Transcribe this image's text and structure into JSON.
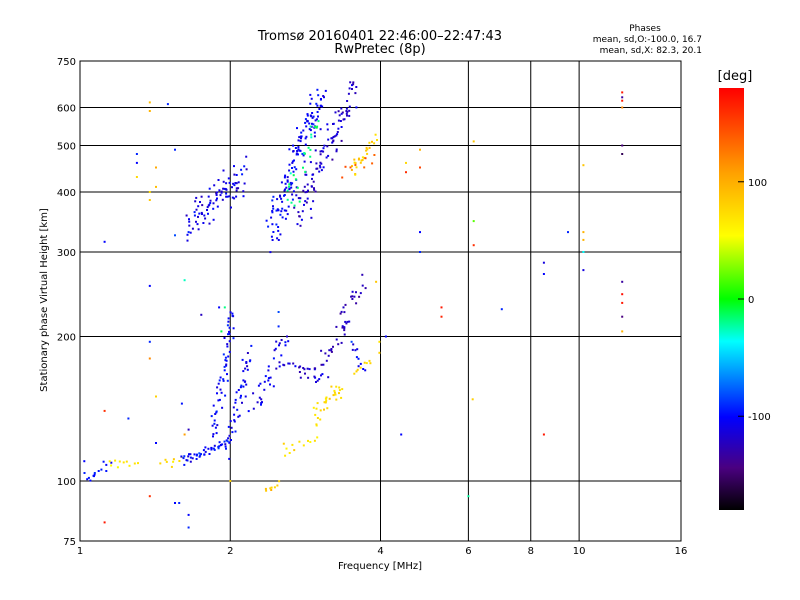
{
  "chart_data": {
    "type": "scatter",
    "title": "Tromsø 20160401 22:46:00–22:47:43",
    "subtitle": "RwPretec (8p)",
    "phases_block": {
      "heading": "Phases",
      "line1": "mean, sd,O:-100.0, 16.7",
      "line2": "mean, sd,X:  82.3, 20.1"
    },
    "xlabel": "Frequency [MHz]",
    "ylabel": "Stationary phase Virtual Height [km]",
    "x_scale": "log",
    "y_scale": "log",
    "xlim": [
      1,
      16
    ],
    "ylim": [
      75,
      750
    ],
    "x_ticks": [
      1,
      2,
      4,
      6,
      8,
      10,
      16
    ],
    "y_ticks": [
      75,
      100,
      200,
      300,
      400,
      500,
      600,
      750
    ],
    "grid": true,
    "colorbar": {
      "label": "[deg]",
      "range": [
        -180,
        180
      ],
      "ticks": [
        100,
        0,
        -100
      ]
    },
    "series": [
      {
        "segments": [
          {
            "f0": 1.02,
            "f1": 1.14,
            "h0": 100,
            "h1": 108,
            "n": 14,
            "phase": -105,
            "sh": 4,
            "sf": 0.03
          },
          {
            "f0": 1.14,
            "f1": 1.3,
            "h0": 108,
            "h1": 110,
            "n": 10,
            "phase": 70,
            "sh": 3,
            "sf": 0.03
          },
          {
            "f0": 1.45,
            "f1": 1.6,
            "h0": 109,
            "h1": 112,
            "n": 8,
            "phase": 75,
            "sh": 3,
            "sf": 0.03
          },
          {
            "f0": 1.6,
            "f1": 1.98,
            "h0": 110,
            "h1": 120,
            "n": 45,
            "phase": -108,
            "sh": 2,
            "sf": 0.02
          },
          {
            "f0": 1.86,
            "f1": 2.03,
            "h0": 125,
            "h1": 225,
            "n": 55,
            "phase": -110,
            "sh": 6,
            "sf": 0.05
          },
          {
            "f0": 1.98,
            "f1": 2.2,
            "h0": 118,
            "h1": 185,
            "n": 45,
            "phase": -115,
            "sh": 8,
            "sf": 0.05
          },
          {
            "f0": 2.25,
            "f1": 2.6,
            "h0": 140,
            "h1": 200,
            "n": 35,
            "phase": -118,
            "sh": 8,
            "sf": 0.1
          },
          {
            "f0": 2.6,
            "f1": 3.1,
            "h0": 175,
            "h1": 162,
            "n": 25,
            "phase": -125,
            "sh": 5,
            "sf": 0.1
          },
          {
            "f0": 3.0,
            "f1": 3.45,
            "h0": 165,
            "h1": 218,
            "n": 25,
            "phase": -130,
            "sh": 8,
            "sf": 0.05
          },
          {
            "f0": 3.3,
            "f1": 3.7,
            "h0": 210,
            "h1": 255,
            "n": 20,
            "phase": -132,
            "sh": 15,
            "sf": 0.05
          },
          {
            "f0": 3.5,
            "f1": 3.72,
            "h0": 190,
            "h1": 172,
            "n": 10,
            "phase": -120,
            "sh": 5,
            "sf": 0.04
          },
          {
            "f0": 2.35,
            "f1": 2.5,
            "h0": 95,
            "h1": 99,
            "n": 8,
            "phase": 88,
            "sh": 2,
            "sf": 0.04
          },
          {
            "f0": 2.5,
            "f1": 2.95,
            "h0": 115,
            "h1": 122,
            "n": 12,
            "phase": 72,
            "sh": 3,
            "sf": 0.06
          },
          {
            "f0": 2.95,
            "f1": 3.35,
            "h0": 135,
            "h1": 160,
            "n": 30,
            "phase": 78,
            "sh": 8,
            "sf": 0.06
          },
          {
            "f0": 3.55,
            "f1": 3.8,
            "h0": 168,
            "h1": 178,
            "n": 8,
            "phase": 82,
            "sh": 3,
            "sf": 0.04
          },
          {
            "f0": 1.65,
            "f1": 2.15,
            "h0": 340,
            "h1": 440,
            "n": 90,
            "phase": -118,
            "sh": 30,
            "sf": 0.06
          },
          {
            "f0": 2.4,
            "f1": 3.05,
            "h0": 340,
            "h1": 640,
            "n": 140,
            "phase": -112,
            "sh": 40,
            "sf": 0.07
          },
          {
            "f0": 2.7,
            "f1": 3.55,
            "h0": 360,
            "h1": 650,
            "n": 110,
            "phase": -125,
            "sh": 40,
            "sf": 0.06
          },
          {
            "f0": 2.6,
            "f1": 3.0,
            "h0": 380,
            "h1": 560,
            "n": 25,
            "phase": -20,
            "sh": 30,
            "sf": 0.08
          },
          {
            "f0": 3.5,
            "f1": 3.9,
            "h0": 440,
            "h1": 520,
            "n": 25,
            "phase": 88,
            "sh": 15,
            "sf": 0.04
          },
          {
            "f0": 3.35,
            "f1": 3.9,
            "h0": 440,
            "h1": 470,
            "n": 8,
            "phase": 140,
            "sh": 10,
            "sf": 0.03
          }
        ],
        "points": [
          [
            1.38,
            615,
            95
          ],
          [
            1.38,
            590,
            100
          ],
          [
            1.5,
            610,
            -100
          ],
          [
            1.3,
            480,
            -100
          ],
          [
            1.3,
            460,
            -110
          ],
          [
            1.3,
            430,
            80
          ],
          [
            1.38,
            400,
            80
          ],
          [
            1.38,
            385,
            90
          ],
          [
            1.42,
            450,
            105
          ],
          [
            1.42,
            410,
            95
          ],
          [
            1.55,
            490,
            -100
          ],
          [
            1.55,
            325,
            -90
          ],
          [
            1.65,
            330,
            -100
          ],
          [
            1.12,
            315,
            -110
          ],
          [
            1.38,
            255,
            -110
          ],
          [
            1.62,
            262,
            -30
          ],
          [
            1.9,
            230,
            -110
          ],
          [
            1.95,
            230,
            -20
          ],
          [
            1.92,
            205,
            -10
          ],
          [
            1.75,
            222,
            -130
          ],
          [
            1.38,
            195,
            -100
          ],
          [
            1.38,
            180,
            120
          ],
          [
            1.12,
            140,
            160
          ],
          [
            1.25,
            135,
            -100
          ],
          [
            1.42,
            150,
            85
          ],
          [
            1.42,
            120,
            -110
          ],
          [
            1.6,
            145,
            -105
          ],
          [
            1.62,
            125,
            110
          ],
          [
            1.65,
            128,
            -130
          ],
          [
            1.55,
            90,
            -110
          ],
          [
            1.58,
            90,
            -100
          ],
          [
            1.65,
            85,
            -110
          ],
          [
            1.38,
            93,
            160
          ],
          [
            1.12,
            82,
            170
          ],
          [
            1.02,
            110,
            -110
          ],
          [
            1.65,
            80,
            -100
          ],
          [
            2.0,
            100,
            85
          ],
          [
            4.5,
            460,
            80
          ],
          [
            4.5,
            440,
            160
          ],
          [
            4.8,
            490,
            100
          ],
          [
            4.8,
            450,
            150
          ],
          [
            4.8,
            330,
            -110
          ],
          [
            4.8,
            300,
            -100
          ],
          [
            4.4,
            125,
            -110
          ],
          [
            3.98,
            185,
            85
          ],
          [
            3.98,
            195,
            75
          ],
          [
            3.92,
            260,
            90
          ],
          [
            4.1,
            200,
            -110
          ],
          [
            5.3,
            230,
            170
          ],
          [
            5.3,
            220,
            165
          ],
          [
            6.15,
            510,
            90
          ],
          [
            6.15,
            348,
            20
          ],
          [
            6.15,
            310,
            160
          ],
          [
            6.12,
            148,
            85
          ],
          [
            6.0,
            93,
            -25
          ],
          [
            7.0,
            228,
            -100
          ],
          [
            8.5,
            285,
            -120
          ],
          [
            8.5,
            270,
            -110
          ],
          [
            8.5,
            125,
            170
          ],
          [
            9.5,
            330,
            -100
          ],
          [
            10.2,
            455,
            90
          ],
          [
            10.2,
            330,
            100
          ],
          [
            10.2,
            300,
            -40
          ],
          [
            10.2,
            275,
            -120
          ],
          [
            12.2,
            645,
            170
          ],
          [
            12.2,
            630,
            -140
          ],
          [
            12.2,
            500,
            -150
          ],
          [
            12.2,
            480,
            -160
          ],
          [
            12.2,
            620,
            170
          ],
          [
            12.2,
            260,
            -140
          ],
          [
            12.2,
            245,
            175
          ],
          [
            12.2,
            235,
            170
          ],
          [
            12.2,
            220,
            -150
          ],
          [
            12.2,
            205,
            100
          ],
          [
            12.2,
            600,
            120
          ],
          [
            10.2,
            318,
            100
          ],
          [
            3.5,
            195,
            -90
          ],
          [
            2.5,
            210,
            -100
          ],
          [
            2.5,
            225,
            -90
          ]
        ]
      }
    ]
  }
}
